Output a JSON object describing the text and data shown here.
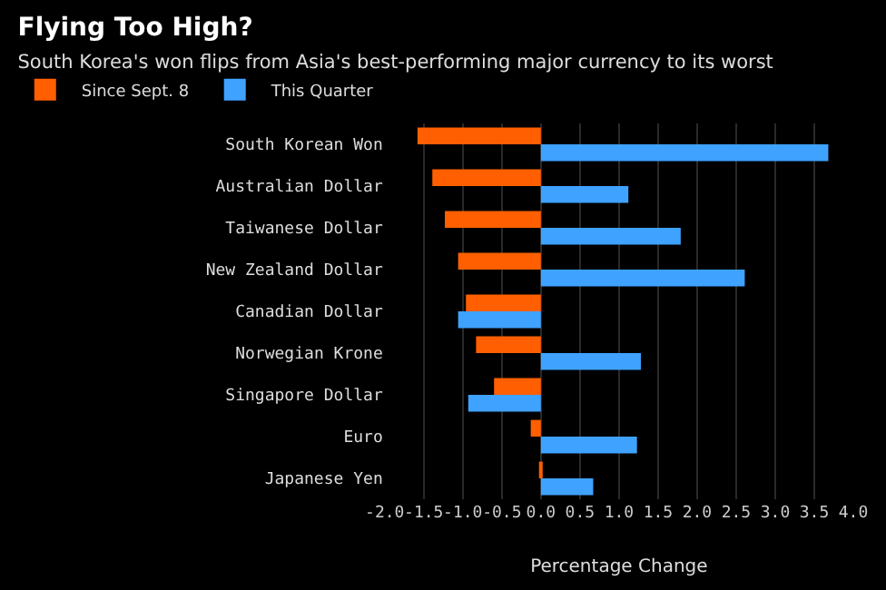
{
  "chart_data": {
    "type": "bar",
    "orientation": "horizontal",
    "title": "Flying Too High?",
    "subtitle": "South Korea's won flips from Asia's best-performing major currency to its worst",
    "xlabel": "Percentage Change",
    "categories": [
      "South Korean Won",
      "Australian Dollar",
      "Taiwanese Dollar",
      "New Zealand Dollar",
      "Canadian Dollar",
      "Norwegian Krone",
      "Singapore Dollar",
      "Euro",
      "Japanese Yen"
    ],
    "series": [
      {
        "name": "Since Sept. 8",
        "color": "#ff5f00",
        "values": [
          -1.58,
          -1.39,
          -1.23,
          -1.06,
          -0.96,
          -0.83,
          -0.6,
          -0.13,
          -0.01
        ]
      },
      {
        "name": "This Quarter",
        "color": "#3fa2ff",
        "values": [
          3.68,
          1.12,
          1.79,
          2.61,
          -1.06,
          1.28,
          -0.93,
          1.23,
          0.67
        ]
      }
    ],
    "xlim": [
      -2,
      4
    ],
    "xticks": [
      {
        "value": -2,
        "label": "-2.0"
      },
      {
        "value": -1.5,
        "label": "-1.5"
      },
      {
        "value": -1,
        "label": "-1.0"
      },
      {
        "value": -0.5,
        "label": "-0.5"
      },
      {
        "value": 0,
        "label": "0.0"
      },
      {
        "value": 0.5,
        "label": "0.5"
      },
      {
        "value": 1,
        "label": "1.0"
      },
      {
        "value": 1.5,
        "label": "1.5"
      },
      {
        "value": 2,
        "label": "2.0"
      },
      {
        "value": 2.5,
        "label": "2.5"
      },
      {
        "value": 3,
        "label": "3.0"
      },
      {
        "value": 3.5,
        "label": "3.5"
      },
      {
        "value": 4,
        "label": "4.0"
      }
    ],
    "grid": "x",
    "legend": "top left"
  }
}
